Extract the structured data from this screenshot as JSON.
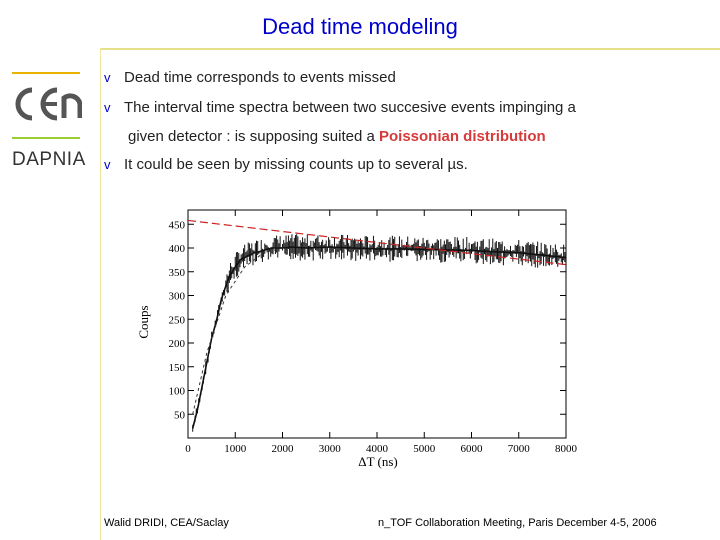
{
  "slide": {
    "title": "Dead time modeling",
    "org": "DAPNIA",
    "bullets": [
      "Dead time corresponds to events missed",
      "The interval time spectra between two succesive events impinging a"
    ],
    "bullet2_cont_prefix": "given detector : is supposing suited a",
    "bullet2_cont_highlight": "Poissonian distribution",
    "bullet3": "It could be seen by missing counts up to several µs.",
    "bullet_mark": "v",
    "footer_left": "Walid DRIDI, CEA/Saclay",
    "footer_right": "n_TOF Collaboration Meeting, Paris December 4-5, 2006"
  },
  "colors": {
    "title": "#0000cc",
    "highlight": "#d63b3b",
    "fit_line": "#cc2222"
  },
  "chart_data": {
    "type": "line",
    "xlabel": "ΔT (ns)",
    "ylabel": "Coups",
    "xlim": [
      0,
      8000
    ],
    "ylim": [
      0,
      480
    ],
    "x_ticks": [
      0,
      1000,
      2000,
      3000,
      4000,
      5000,
      6000,
      7000,
      8000
    ],
    "y_ticks": [
      50,
      100,
      150,
      200,
      250,
      300,
      350,
      400,
      450
    ],
    "grid": false,
    "series": [
      {
        "style": "histogram",
        "x": [
          100,
          200,
          300,
          400,
          500,
          600,
          700,
          800,
          900,
          1000,
          1100,
          1200,
          1300,
          1400,
          1500,
          1600,
          1700,
          1800,
          1900,
          2000,
          2200,
          2500,
          3000,
          3500,
          4000,
          4500,
          5000,
          5500,
          6000,
          6500,
          7000,
          7500,
          8000
        ],
        "values": [
          20,
          60,
          110,
          160,
          210,
          245,
          290,
          320,
          345,
          360,
          375,
          380,
          385,
          390,
          392,
          395,
          398,
          400,
          400,
          400,
          402,
          400,
          402,
          400,
          398,
          398,
          397,
          396,
          395,
          392,
          390,
          385,
          380
        ]
      },
      {
        "style": "dashed-fit",
        "x": [
          0,
          8000
        ],
        "values": [
          458,
          365
        ]
      },
      {
        "style": "dashed-rise",
        "x": [
          100,
          400,
          800,
          1200,
          1600,
          2000
        ],
        "values": [
          50,
          180,
          300,
          360,
          390,
          400
        ]
      }
    ]
  }
}
